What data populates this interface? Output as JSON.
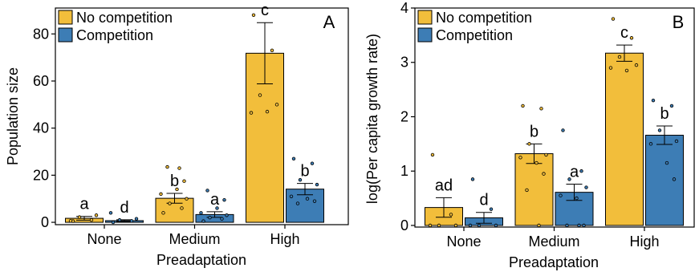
{
  "colors": {
    "no_competition": "#F2BE3B",
    "competition": "#3D7DB5"
  },
  "chart_data": [
    {
      "type": "bar",
      "panel_letter": "A",
      "xlabel": "Preadaptation",
      "ylabel": "Population size",
      "categories": [
        "None",
        "Medium",
        "High"
      ],
      "ylim": [
        -1,
        91
      ],
      "yticks": [
        0,
        20,
        40,
        60,
        80
      ],
      "grid": false,
      "legend_position": "top-left",
      "series": [
        {
          "name": "No competition",
          "color": "#F2BE3B",
          "values": [
            1.7,
            10.2,
            71.8
          ],
          "errors": [
            0.8,
            2.1,
            13.0
          ],
          "letters": [
            "a",
            "b",
            "c"
          ],
          "points": [
            [
              0.5,
              1.0,
              2.2,
              3.0,
              0.6
            ],
            [
              4.0,
              6.0,
              8.0,
              10.0,
              12.0,
              14.0,
              17.5,
              23.5,
              23.0
            ],
            [
              88.0,
              73.0,
              54.0,
              50.0,
              46.5,
              47.0
            ]
          ]
        },
        {
          "name": "Competition",
          "color": "#3D7DB5",
          "values": [
            0.7,
            3.3,
            14.1
          ],
          "errors": [
            0.4,
            1.2,
            2.4
          ],
          "letters": [
            "d",
            "a",
            "b"
          ],
          "points": [
            [
              0.0,
              0.6,
              1.0,
              1.5,
              4.0
            ],
            [
              0.5,
              1.5,
              2.0,
              3.0,
              4.0,
              6.0,
              9.5,
              13.5
            ],
            [
              27.0,
              25.0,
              18.0,
              16.0,
              11.0,
              10.0,
              9.0,
              8.0
            ]
          ]
        }
      ]
    },
    {
      "type": "bar",
      "panel_letter": "B",
      "xlabel": "Preadaptation",
      "ylabel": "log(Per capita growth rate)",
      "categories": [
        "None",
        "Medium",
        "High"
      ],
      "ylim": [
        -0.03,
        4
      ],
      "yticks": [
        0,
        1,
        2,
        3,
        4
      ],
      "grid": false,
      "legend_position": "top-left",
      "series": [
        {
          "name": "No competition",
          "color": "#F2BE3B",
          "values": [
            0.33,
            1.32,
            3.17
          ],
          "errors": [
            0.18,
            0.18,
            0.15
          ],
          "letters": [
            "ad",
            "b",
            "c"
          ],
          "points": [
            [
              1.3,
              0.2,
              0.0,
              0.0,
              0.0
            ],
            [
              2.2,
              2.15,
              1.5,
              1.3,
              1.25,
              1.15,
              0.95,
              0.65,
              0.0
            ],
            [
              3.8,
              3.45,
              3.1,
              2.95,
              2.9,
              2.85
            ]
          ]
        },
        {
          "name": "Competition",
          "color": "#3D7DB5",
          "values": [
            0.14,
            0.61,
            1.66
          ],
          "errors": [
            0.1,
            0.15,
            0.17
          ],
          "letters": [
            "d",
            "a",
            "b"
          ],
          "points": [
            [
              0.85,
              0.3,
              0.0,
              0.0,
              0.0
            ],
            [
              1.75,
              1.0,
              0.85,
              0.7,
              0.55,
              0.5,
              0.0,
              0.0,
              0.0
            ],
            [
              2.3,
              2.2,
              1.75,
              1.55,
              1.5,
              1.15,
              0.85
            ]
          ]
        }
      ]
    }
  ]
}
